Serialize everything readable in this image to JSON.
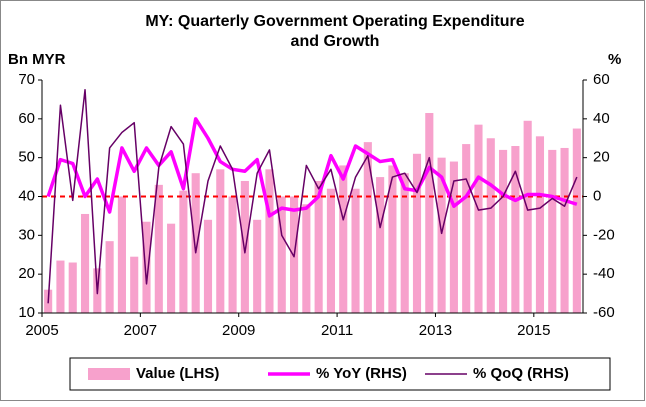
{
  "chart_data": {
    "type": "bar_line",
    "title": [
      "MY: Quarterly Government Operating Expenditure",
      "and Growth"
    ],
    "ylabel": "Bn MYR",
    "y2label": "%",
    "categories": [
      "2005",
      null,
      null,
      null,
      null,
      null,
      null,
      null,
      "2007",
      null,
      null,
      null,
      null,
      null,
      null,
      null,
      "2009",
      null,
      null,
      null,
      null,
      null,
      null,
      null,
      "2011",
      null,
      null,
      null,
      null,
      null,
      null,
      null,
      "2013",
      null,
      null,
      null,
      null,
      null,
      null,
      null,
      "2015",
      null,
      null,
      null
    ],
    "series": [
      {
        "name": "Value (LHS)",
        "type": "bar",
        "axis": "y",
        "color": "#f7a1cc",
        "values": [
          16,
          23.5,
          23,
          35.5,
          21.5,
          28.5,
          40,
          24.5,
          33.5,
          43,
          33,
          41.5,
          46,
          34,
          47,
          40,
          44,
          34,
          47,
          40,
          40,
          38,
          44,
          42,
          48,
          42,
          54,
          45,
          48,
          46,
          51,
          61.5,
          50,
          49,
          53.5,
          58.5,
          55,
          52,
          53,
          59.5,
          55.5,
          52,
          52.5,
          57.5
        ]
      },
      {
        "name": "% YoY (RHS)",
        "type": "line",
        "axis": "y2",
        "color": "#ff00ff",
        "width": 3.5,
        "values": [
          0,
          19,
          17,
          0,
          9,
          -8,
          25,
          13,
          25,
          16,
          23,
          4,
          40,
          30,
          18,
          14,
          13,
          19,
          -10,
          -6,
          -7,
          -6,
          0,
          21,
          9,
          26,
          22,
          18,
          19,
          4,
          3,
          15,
          10,
          -5,
          0,
          10,
          6,
          1,
          -2,
          1,
          1,
          0,
          -2,
          -4
        ]
      },
      {
        "name": "% QoQ (RHS)",
        "type": "line",
        "axis": "y2",
        "color": "#660066",
        "width": 1.5,
        "values": [
          -55,
          47,
          -2,
          55,
          -50,
          25,
          33,
          38,
          -45,
          15,
          36,
          27,
          -29,
          8,
          26,
          14,
          -29,
          12,
          24,
          -20,
          -31,
          16,
          4,
          14,
          -12,
          10,
          21,
          -16,
          10,
          12,
          2,
          20,
          -19,
          8,
          9,
          -7,
          -6,
          0,
          13,
          -7,
          -6,
          -1,
          -5,
          10
        ]
      }
    ],
    "ylim": [
      10,
      70
    ],
    "yticks": [
      10,
      20,
      30,
      40,
      50,
      60,
      70
    ],
    "y2lim": [
      -60,
      60
    ],
    "y2ticks": [
      -60,
      -40,
      -20,
      0,
      20,
      40,
      60
    ],
    "zero_line": {
      "value": 0,
      "color": "#ff0000"
    },
    "legend": "bottom"
  }
}
